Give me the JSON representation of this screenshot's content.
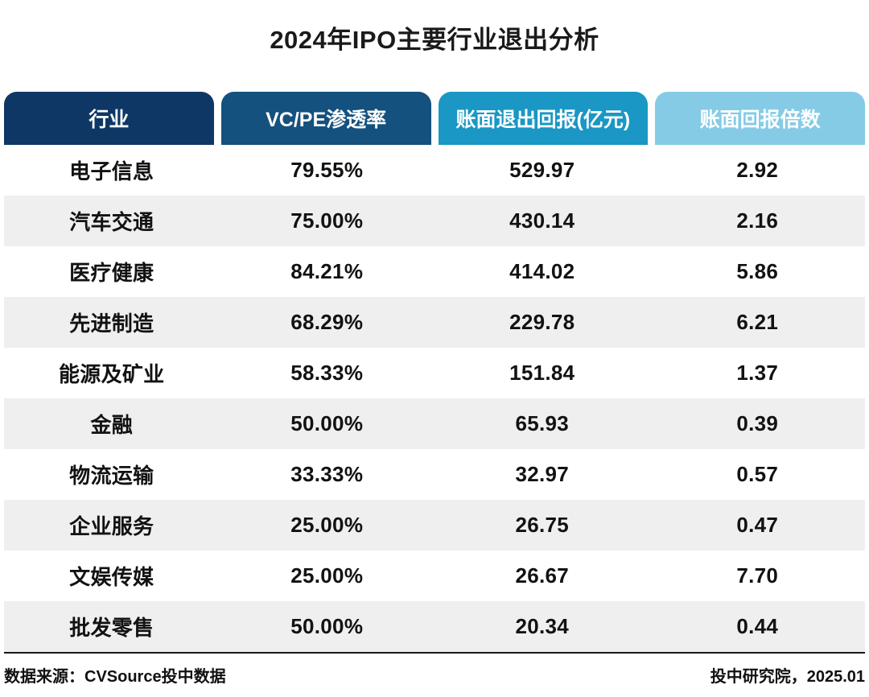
{
  "title": "2024年IPO主要行业退出分析",
  "table": {
    "columns": [
      {
        "label": "行业",
        "color": "#0e3765"
      },
      {
        "label": "VC/PE渗透率",
        "color": "#14517e"
      },
      {
        "label": "账面退出回报(亿元)",
        "color": "#1a97c4"
      },
      {
        "label": "账面回报倍数",
        "color": "#85cbe6"
      }
    ],
    "rows": [
      [
        "电子信息",
        "79.55%",
        "529.97",
        "2.92"
      ],
      [
        "汽车交通",
        "75.00%",
        "430.14",
        "2.16"
      ],
      [
        "医疗健康",
        "84.21%",
        "414.02",
        "5.86"
      ],
      [
        "先进制造",
        "68.29%",
        "229.78",
        "6.21"
      ],
      [
        "能源及矿业",
        "58.33%",
        "151.84",
        "1.37"
      ],
      [
        "金融",
        "50.00%",
        "65.93",
        "0.39"
      ],
      [
        "物流运输",
        "33.33%",
        "32.97",
        "0.57"
      ],
      [
        "企业服务",
        "25.00%",
        "26.75",
        "0.47"
      ],
      [
        "文娱传媒",
        "25.00%",
        "26.67",
        "7.70"
      ],
      [
        "批发零售",
        "50.00%",
        "20.34",
        "0.44"
      ]
    ]
  },
  "footer": {
    "source": "数据来源：CVSource投中数据",
    "credit": "投中研究院，2025.01"
  },
  "colors": {
    "row_stripe": "#efefef",
    "divider": "#1a1a1a",
    "header_text": "#ffffff",
    "body_text": "#121212"
  },
  "chart_data": {
    "type": "table",
    "title": "2024年IPO主要行业退出分析",
    "columns": [
      "行业",
      "VC/PE渗透率",
      "账面退出回报(亿元)",
      "账面回报倍数"
    ],
    "rows": [
      {
        "industry": "电子信息",
        "vcpe_penetration": "79.55%",
        "book_exit_return_100m_yuan": 529.97,
        "book_return_multiple": 2.92
      },
      {
        "industry": "汽车交通",
        "vcpe_penetration": "75.00%",
        "book_exit_return_100m_yuan": 430.14,
        "book_return_multiple": 2.16
      },
      {
        "industry": "医疗健康",
        "vcpe_penetration": "84.21%",
        "book_exit_return_100m_yuan": 414.02,
        "book_return_multiple": 5.86
      },
      {
        "industry": "先进制造",
        "vcpe_penetration": "68.29%",
        "book_exit_return_100m_yuan": 229.78,
        "book_return_multiple": 6.21
      },
      {
        "industry": "能源及矿业",
        "vcpe_penetration": "58.33%",
        "book_exit_return_100m_yuan": 151.84,
        "book_return_multiple": 1.37
      },
      {
        "industry": "金融",
        "vcpe_penetration": "50.00%",
        "book_exit_return_100m_yuan": 65.93,
        "book_return_multiple": 0.39
      },
      {
        "industry": "物流运输",
        "vcpe_penetration": "33.33%",
        "book_exit_return_100m_yuan": 32.97,
        "book_return_multiple": 0.57
      },
      {
        "industry": "企业服务",
        "vcpe_penetration": "25.00%",
        "book_exit_return_100m_yuan": 26.75,
        "book_return_multiple": 0.47
      },
      {
        "industry": "文娱传媒",
        "vcpe_penetration": "25.00%",
        "book_exit_return_100m_yuan": 26.67,
        "book_return_multiple": 7.7
      },
      {
        "industry": "批发零售",
        "vcpe_penetration": "50.00%",
        "book_exit_return_100m_yuan": 20.34,
        "book_return_multiple": 0.44
      }
    ],
    "source": "数据来源：CVSource投中数据",
    "credit": "投中研究院，2025.01"
  }
}
